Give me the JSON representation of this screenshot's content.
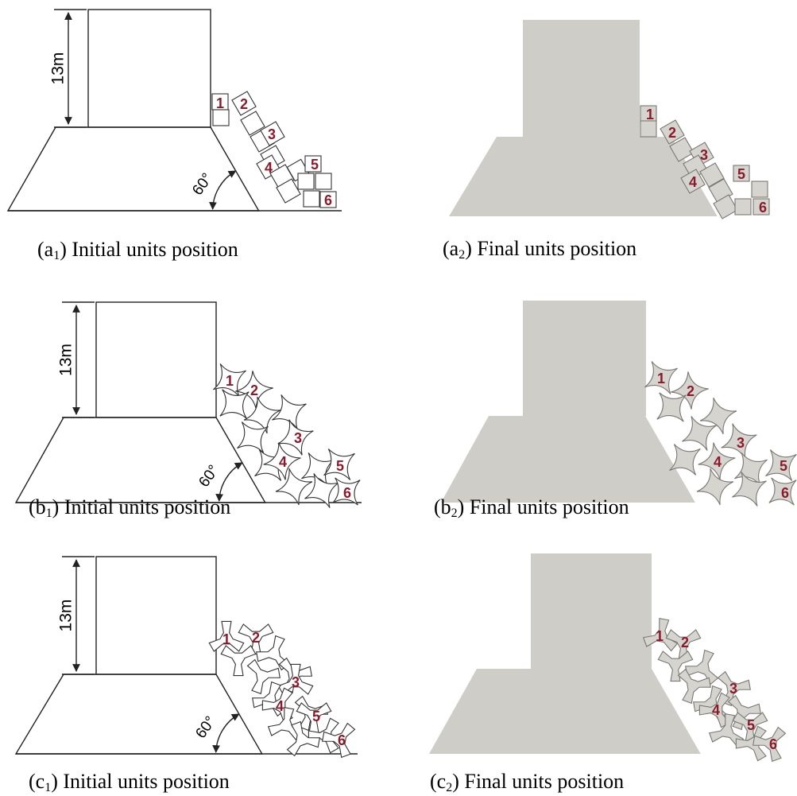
{
  "figure": {
    "dimension_label": "13m",
    "slope_label": "60°",
    "unit_numbers": [
      "1",
      "2",
      "3",
      "4",
      "5",
      "6"
    ],
    "panels": [
      {
        "id": "a1",
        "caption_prefix": "(a",
        "caption_sub": "1",
        "caption_text": ") Initial units position",
        "state": "initial",
        "unit_shape": "cube"
      },
      {
        "id": "a2",
        "caption_prefix": "(a",
        "caption_sub": "2",
        "caption_text": ") Final units position",
        "state": "final",
        "unit_shape": "cube"
      },
      {
        "id": "b1",
        "caption_prefix": "(b",
        "caption_sub": "1",
        "caption_text": ") Initial units position",
        "state": "initial",
        "unit_shape": "star"
      },
      {
        "id": "b2",
        "caption_prefix": "(b",
        "caption_sub": "2",
        "caption_text": ") Final units position",
        "state": "final",
        "unit_shape": "star"
      },
      {
        "id": "c1",
        "caption_prefix": "(c",
        "caption_sub": "1",
        "caption_text": ") Initial units position",
        "state": "initial",
        "unit_shape": "tri"
      },
      {
        "id": "c2",
        "caption_prefix": "(c",
        "caption_sub": "2",
        "caption_text": ")  Final units position",
        "state": "final",
        "unit_shape": "tri"
      }
    ]
  }
}
